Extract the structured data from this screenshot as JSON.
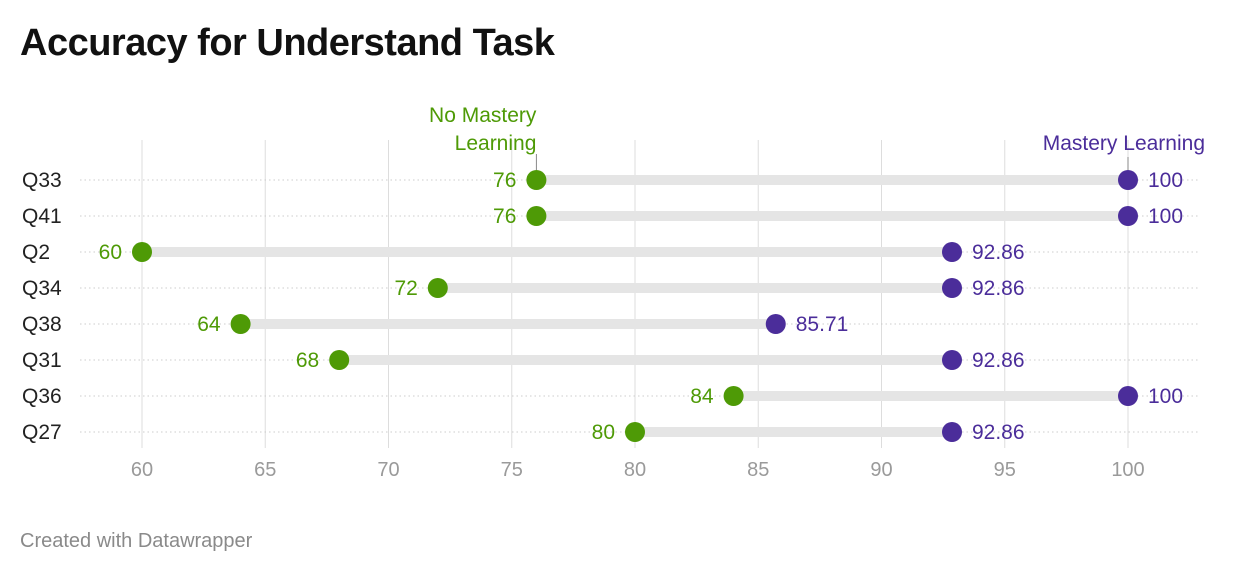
{
  "title": "Accuracy for Understand Task",
  "footer": "Created with Datawrapper",
  "chart_data": {
    "type": "dot-range",
    "title": "Accuracy for Understand Task",
    "xlabel": "",
    "ylabel": "",
    "xlim": [
      58,
      102
    ],
    "x_ticks": [
      60,
      65,
      70,
      75,
      80,
      85,
      90,
      95,
      100
    ],
    "grid": true,
    "categories": [
      "Q33",
      "Q41",
      "Q2",
      "Q34",
      "Q38",
      "Q31",
      "Q36",
      "Q27"
    ],
    "series": [
      {
        "name": "No Mastery Learning",
        "color": "#4e9a06",
        "values": [
          76,
          76,
          60,
          72,
          64,
          68,
          84,
          80
        ],
        "labels": [
          "76",
          "76",
          "60",
          "72",
          "64",
          "68",
          "84",
          "80"
        ]
      },
      {
        "name": "Mastery Learning",
        "color": "#4b2d9a",
        "values": [
          100,
          100,
          92.86,
          92.86,
          85.71,
          92.86,
          100,
          92.86
        ],
        "labels": [
          "100",
          "100",
          "92.86",
          "92.86",
          "85.71",
          "92.86",
          "100",
          "92.86"
        ]
      }
    ],
    "legend_lines": {
      "no_mastery": [
        "No Mastery",
        "Learning"
      ],
      "mastery": [
        "Mastery Learning"
      ]
    },
    "colors": {
      "range_bar": "#e5e5e5",
      "grid": "#dddddd",
      "tick": "#9a9a9a",
      "category": "#222222"
    }
  }
}
